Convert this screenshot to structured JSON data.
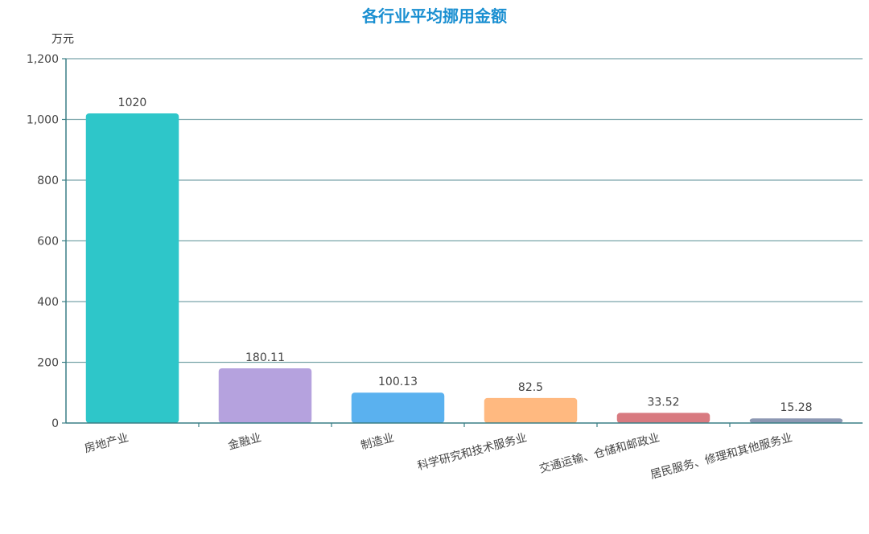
{
  "chart_data": {
    "type": "bar",
    "title": "各行业平均挪用金额",
    "ylabel": "万元",
    "categories": [
      "房地产业",
      "金融业",
      "制造业",
      "科学研究和技术服务业",
      "交通运输、仓储和邮政业",
      "居民服务、修理和其他服务业"
    ],
    "values": [
      1020,
      180.11,
      100.13,
      82.5,
      33.52,
      15.28
    ],
    "value_labels": [
      "1020",
      "180.11",
      "100.13",
      "82.5",
      "33.52",
      "15.28"
    ],
    "ylim": [
      0,
      1200
    ],
    "yticks": [
      0,
      200,
      400,
      600,
      800,
      1000,
      1200
    ],
    "ytick_labels": [
      "0",
      "200",
      "400",
      "600",
      "800",
      "1,000",
      "1,200"
    ],
    "colors": [
      "#2ec6c9",
      "#b5a2de",
      "#5ab1ef",
      "#ffb980",
      "#d87a80",
      "#8d98b3"
    ],
    "grid": true,
    "axis_color": "#3a7f85",
    "grid_color": "#7aa5aa"
  }
}
